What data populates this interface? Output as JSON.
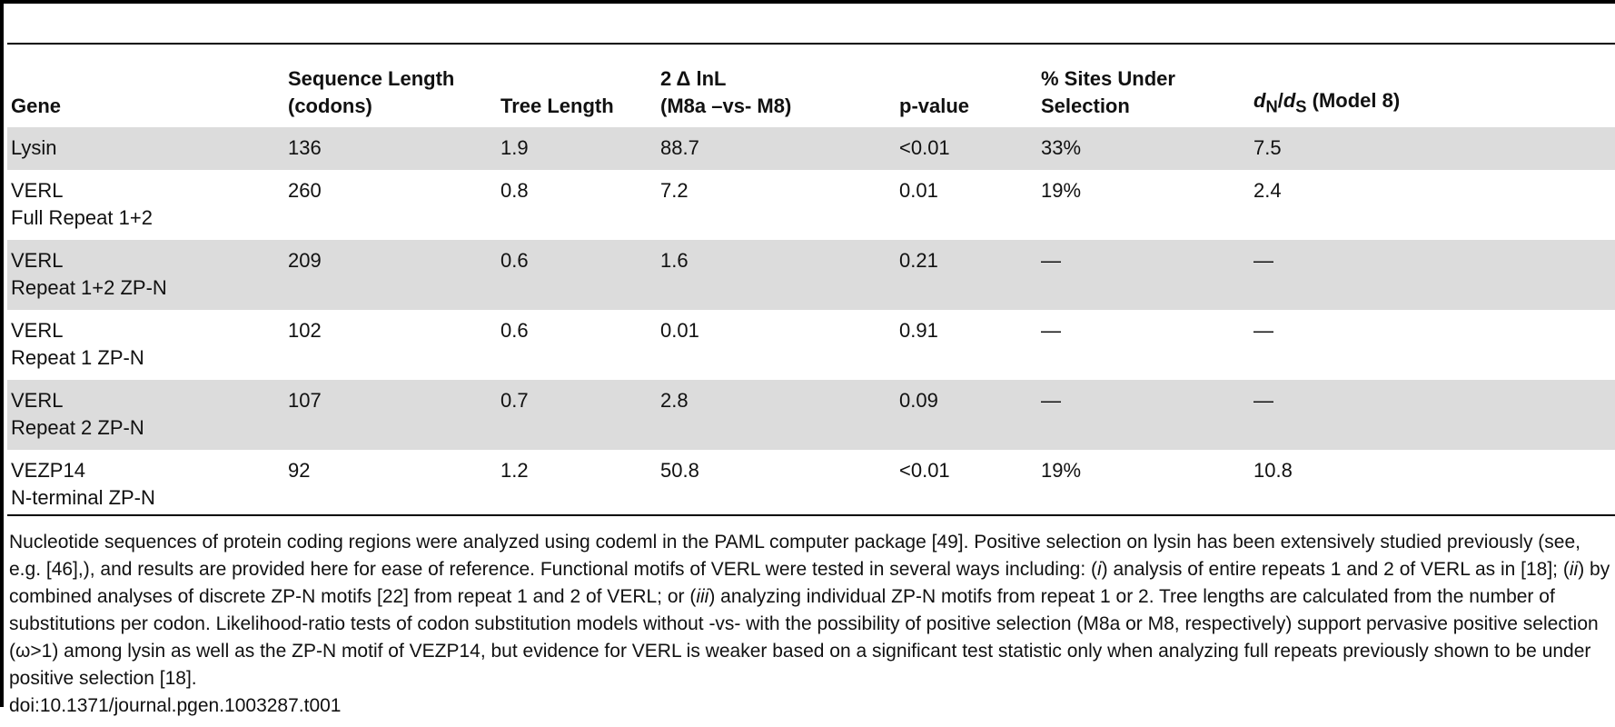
{
  "table": {
    "headers": {
      "gene": "Gene",
      "seq_length_l1": "Sequence Length",
      "seq_length_l2": "(codons)",
      "tree_length": "Tree Length",
      "lnl_l1": "2 Δ lnL",
      "lnl_l2": "(M8a –vs- M8)",
      "pvalue": "p-value",
      "sites_l1": "% Sites Under",
      "sites_l2": "Selection",
      "dnds_d": "d",
      "dnds_n": "N",
      "dnds_slash": "/",
      "dnds_d2": "d",
      "dnds_s": "S",
      "dnds_model": " (Model 8)"
    },
    "rows": [
      {
        "gene": "Lysin",
        "gene2": "",
        "seq": "136",
        "tree": "1.9",
        "lnl": "88.7",
        "p": "<0.01",
        "sites": "33%",
        "dnds": "7.5"
      },
      {
        "gene": "VERL",
        "gene2": "Full Repeat 1+2",
        "seq": "260",
        "tree": "0.8",
        "lnl": "7.2",
        "p": "0.01",
        "sites": "19%",
        "dnds": "2.4"
      },
      {
        "gene": "VERL",
        "gene2": "Repeat 1+2 ZP-N",
        "seq": "209",
        "tree": "0.6",
        "lnl": "1.6",
        "p": "0.21",
        "sites": "—",
        "dnds": "—"
      },
      {
        "gene": "VERL",
        "gene2": "Repeat 1 ZP-N",
        "seq": "102",
        "tree": "0.6",
        "lnl": "0.01",
        "p": "0.91",
        "sites": "—",
        "dnds": "—"
      },
      {
        "gene": "VERL",
        "gene2": "Repeat 2 ZP-N",
        "seq": "107",
        "tree": "0.7",
        "lnl": "2.8",
        "p": "0.09",
        "sites": "—",
        "dnds": "—"
      },
      {
        "gene": "VEZP14",
        "gene2": "N-terminal ZP-N",
        "seq": "92",
        "tree": "1.2",
        "lnl": "50.8",
        "p": "<0.01",
        "sites": "19%",
        "dnds": "10.8"
      }
    ],
    "row_shade_color": "#dcdcdc"
  },
  "footnote": {
    "p1": "Nucleotide sequences of protein coding regions were analyzed using codeml in the PAML computer package [49]. Positive selection on lysin has been extensively studied previously (see, e.g. [46],), and results are provided here for ease of reference. Functional motifs of VERL were tested in several ways including: (",
    "i1": "i",
    "p2": ") analysis of entire repeats 1 and 2 of VERL as in [18]; (",
    "i2": "ii",
    "p3": ") by combined analyses of discrete ZP-N motifs [22] from repeat 1 and 2 of VERL; or (",
    "i3": "iii",
    "p4": ") analyzing individual ZP-N motifs from repeat 1 or 2. Tree lengths are calculated from the number of substitutions per codon. Likelihood-ratio tests of codon substitution models without -vs- with the possibility of positive selection (M8a or M8, respectively) support pervasive positive selection (ω>1) among lysin as well as the ZP-N motif of VEZP14, but evidence for VERL is weaker based on a significant test statistic only when analyzing full repeats previously shown to be under positive selection [18]."
  },
  "doi": "doi:10.1371/journal.pgen.1003287.t001"
}
